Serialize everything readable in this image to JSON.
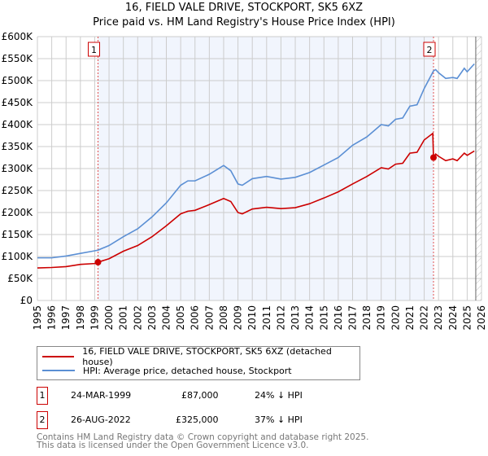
{
  "chart_data": {
    "type": "line",
    "title": "16, FIELD VALE DRIVE, STOCKPORT, SK5 6XZ",
    "subtitle": "Price paid vs. HM Land Registry's House Price Index (HPI)",
    "xlim": [
      1995,
      2026
    ],
    "ylim": [
      0,
      600000
    ],
    "x_ticks": [
      "1995",
      "1996",
      "1997",
      "1998",
      "1999",
      "2000",
      "2001",
      "2002",
      "2003",
      "2004",
      "2005",
      "2006",
      "2007",
      "2008",
      "2009",
      "2010",
      "2011",
      "2012",
      "2013",
      "2014",
      "2015",
      "2016",
      "2017",
      "2018",
      "2019",
      "2020",
      "2021",
      "2022",
      "2023",
      "2024",
      "2025",
      "2026"
    ],
    "y_ticks": [
      {
        "v": 0,
        "label": "£0"
      },
      {
        "v": 50000,
        "label": "£50K"
      },
      {
        "v": 100000,
        "label": "£100K"
      },
      {
        "v": 150000,
        "label": "£150K"
      },
      {
        "v": 200000,
        "label": "£200K"
      },
      {
        "v": 250000,
        "label": "£250K"
      },
      {
        "v": 300000,
        "label": "£300K"
      },
      {
        "v": 350000,
        "label": "£350K"
      },
      {
        "v": 400000,
        "label": "£400K"
      },
      {
        "v": 450000,
        "label": "£450K"
      },
      {
        "v": 500000,
        "label": "£500K"
      },
      {
        "v": 550000,
        "label": "£550K"
      },
      {
        "v": 600000,
        "label": "£600K"
      }
    ],
    "grid": true,
    "shaded_period": [
      1999.23,
      2022.65
    ],
    "forecast_hatch_from": 2025.6,
    "series": [
      {
        "name": "16, FIELD VALE DRIVE, STOCKPORT, SK5 6XZ (detached house)",
        "color": "#cc0000",
        "x": [
          1995,
          1996,
          1997,
          1998,
          1999,
          1999.23,
          2000,
          2001,
          2002,
          2003,
          2004,
          2005,
          2005.5,
          2006,
          2007,
          2008,
          2008.5,
          2009,
          2009.3,
          2010,
          2011,
          2012,
          2013,
          2014,
          2015,
          2016,
          2017,
          2018,
          2019,
          2019.5,
          2020,
          2020.5,
          2021,
          2021.5,
          2022,
          2022.6,
          2022.65,
          2022.8,
          2023,
          2023.5,
          2024,
          2024.3,
          2024.8,
          2025,
          2025.5
        ],
        "y": [
          74000,
          75000,
          77000,
          82000,
          84000,
          87000,
          95000,
          112000,
          125000,
          145000,
          170000,
          197000,
          203000,
          205000,
          218000,
          232000,
          225000,
          200000,
          197000,
          208000,
          212000,
          209000,
          211000,
          220000,
          233000,
          247000,
          265000,
          282000,
          302000,
          299000,
          310000,
          312000,
          335000,
          337000,
          365000,
          380000,
          325000,
          333000,
          328000,
          318000,
          322000,
          318000,
          335000,
          330000,
          340000
        ]
      },
      {
        "name": "HPI: Average price, detached house, Stockport",
        "color": "#5b8fd4",
        "x": [
          1995,
          1996,
          1997,
          1998,
          1999,
          1999.23,
          2000,
          2001,
          2002,
          2003,
          2004,
          2005,
          2005.5,
          2006,
          2007,
          2008,
          2008.5,
          2009,
          2009.3,
          2010,
          2011,
          2012,
          2013,
          2014,
          2015,
          2016,
          2017,
          2018,
          2019,
          2019.5,
          2020,
          2020.5,
          2021,
          2021.5,
          2022,
          2022.65,
          2022.8,
          2023,
          2023.5,
          2024,
          2024.3,
          2024.8,
          2025,
          2025.5
        ],
        "y": [
          97000,
          97000,
          101000,
          107000,
          113000,
          114500,
          125000,
          145000,
          163000,
          190000,
          222000,
          262000,
          272000,
          272000,
          287000,
          307000,
          295000,
          265000,
          262000,
          277000,
          282000,
          276000,
          280000,
          291000,
          308000,
          325000,
          353000,
          372000,
          400000,
          397000,
          412000,
          415000,
          442000,
          445000,
          482000,
          522000,
          525000,
          518000,
          505000,
          507000,
          505000,
          528000,
          520000,
          538000
        ]
      }
    ],
    "sales": [
      {
        "id": "1",
        "x": 1999.23,
        "price": 87000,
        "date": "24-MAR-1999",
        "price_label": "£87,000",
        "hpi_diff": "24% ↓ HPI"
      },
      {
        "id": "2",
        "x": 2022.65,
        "price": 325000,
        "date": "26-AUG-2022",
        "price_label": "£325,000",
        "hpi_diff": "37% ↓ HPI"
      }
    ]
  },
  "footer": {
    "line1": "Contains HM Land Registry data © Crown copyright and database right 2025.",
    "line2": "This data is licensed under the Open Government Licence v3.0."
  }
}
